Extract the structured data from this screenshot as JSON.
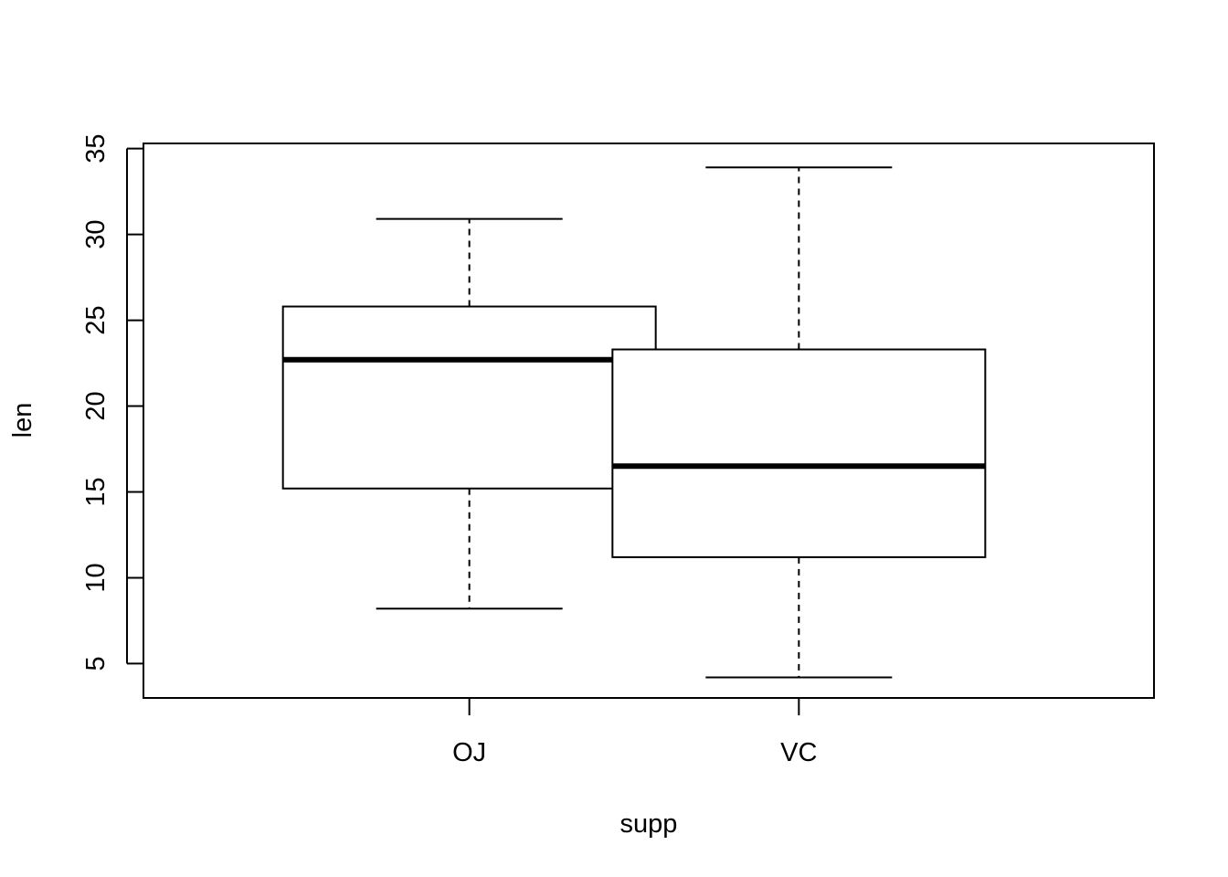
{
  "chart_data": {
    "type": "boxplot",
    "xlabel": "supp",
    "ylabel": "len",
    "ylim": [
      3.0,
      35.3
    ],
    "yticks": [
      5,
      10,
      15,
      20,
      25,
      30,
      35
    ],
    "categories": [
      "OJ",
      "VC"
    ],
    "boxes": [
      {
        "category": "OJ",
        "whisker_low": 8.2,
        "q1": 15.2,
        "median": 22.7,
        "q3": 25.8,
        "whisker_high": 30.9
      },
      {
        "category": "VC",
        "whisker_low": 4.2,
        "q1": 11.2,
        "median": 16.5,
        "q3": 23.3,
        "whisker_high": 33.9
      }
    ],
    "grid": false,
    "colors": {
      "stroke": "#000000",
      "fill": "#ffffff"
    }
  }
}
